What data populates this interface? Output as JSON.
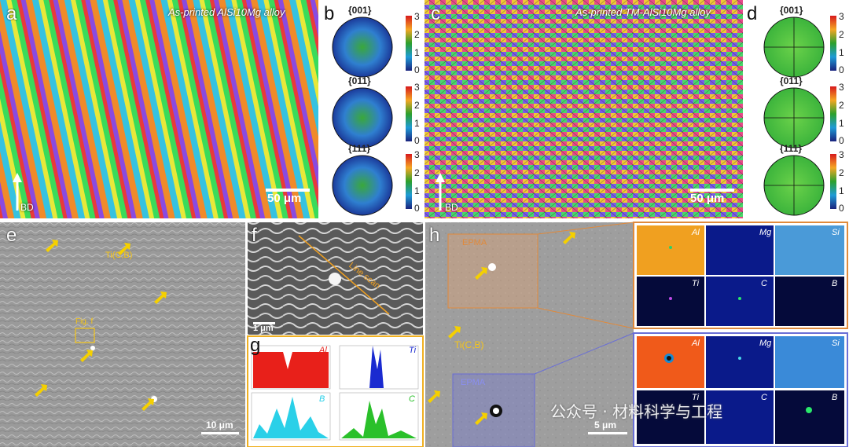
{
  "panels": {
    "a": {
      "letter": "a",
      "title": "As-printed AlSi10Mg alloy",
      "scale": "50 μm",
      "axis": "BD"
    },
    "b": {
      "letter": "b",
      "pole_figures": [
        "{001}",
        "{011}",
        "{111}"
      ],
      "colorbar_ticks": [
        "3",
        "2",
        "1",
        "0"
      ]
    },
    "c": {
      "letter": "c",
      "title": "As-printed TM-AlSi10Mg alloy",
      "scale": "50 μm",
      "axis": "BD"
    },
    "d": {
      "letter": "d",
      "pole_figures": [
        "{001}",
        "{011}",
        "{111}"
      ],
      "colorbar_ticks": [
        "3",
        "2",
        "1",
        "0"
      ]
    },
    "e": {
      "letter": "e",
      "label_tic": "Ti(C,B)",
      "label_fig": "Fig. f",
      "scale": "10 μm"
    },
    "f": {
      "letter": "f",
      "line_scan": "Line scan",
      "scale": "1 μm"
    },
    "g": {
      "letter": "g",
      "elements": [
        "Al",
        "Ti",
        "B",
        "C"
      ]
    },
    "h": {
      "letter": "h",
      "label_tic": "Ti(C,B)",
      "epma_top": "EPMA",
      "epma_bottom": "EPMA",
      "scale": "5 μm",
      "map_elements_top": [
        "Al",
        "Mg",
        "Si",
        "Ti",
        "C",
        "B"
      ],
      "map_elements_bottom": [
        "Al",
        "Mg",
        "Si",
        "Ti",
        "C",
        "B"
      ]
    }
  },
  "watermark": "公众号 · 材料科学与工程",
  "colors": {
    "orange_frame": "#e08a3c",
    "blue_frame": "#6a6fd6",
    "yellow_arrow": "#f5d000"
  }
}
